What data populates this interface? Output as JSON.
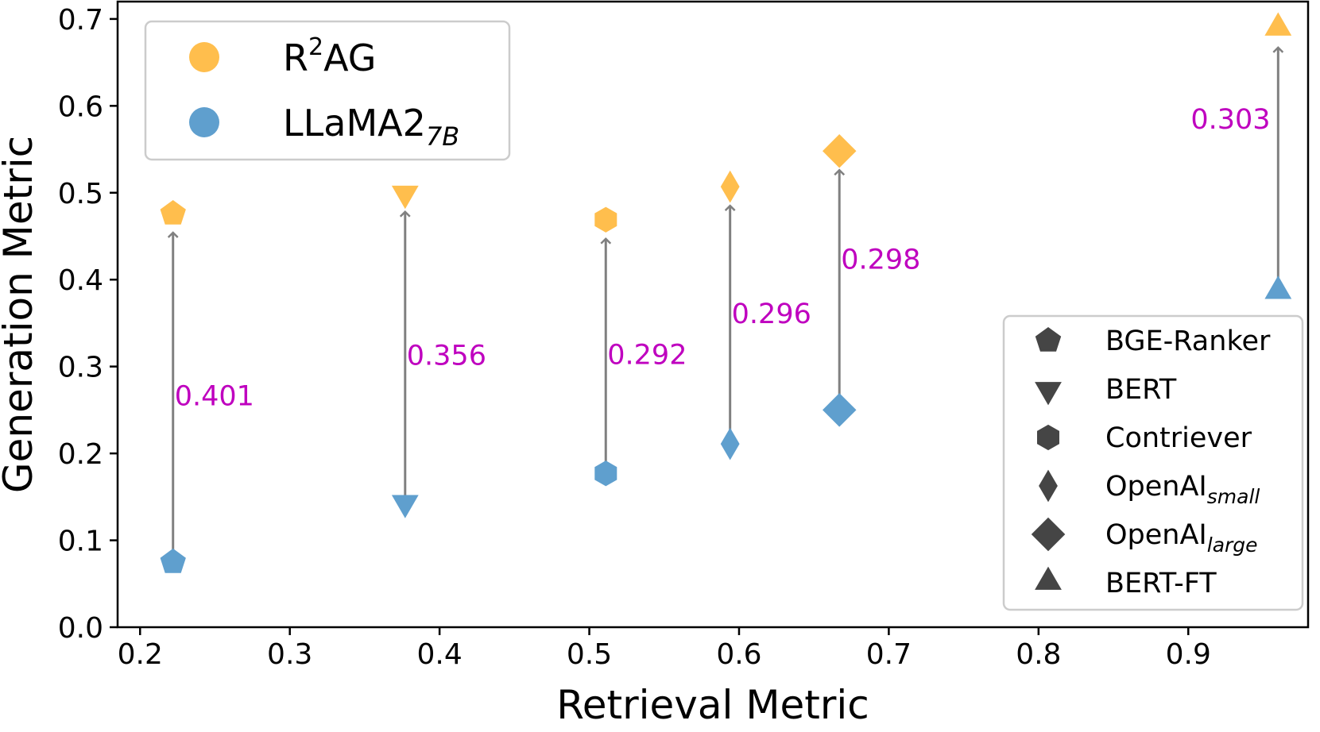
{
  "chart_data": {
    "type": "scatter",
    "title": "",
    "xlabel": "Retrieval Metric",
    "ylabel": "Generation Metric",
    "xlim": [
      0.185,
      0.98
    ],
    "ylim": [
      0.0,
      0.72
    ],
    "xticks": [
      "0.2",
      "0.3",
      "0.4",
      "0.5",
      "0.6",
      "0.7",
      "0.8",
      "0.9"
    ],
    "yticks": [
      "0.0",
      "0.1",
      "0.2",
      "0.3",
      "0.4",
      "0.5",
      "0.6",
      "0.7"
    ],
    "grid": false,
    "colors": {
      "r2ag": "#ffbe4d",
      "llama": "#5f9fce",
      "arrow": "#808080",
      "delta": "#bf00bf",
      "legend_marker": "#454545"
    },
    "series_legend": {
      "position": "upper-left",
      "entries": [
        {
          "key": "r2ag",
          "base": "R",
          "sup": "2",
          "rest": "AG"
        },
        {
          "key": "llama",
          "base": "LLaMA2",
          "sub": "7B"
        }
      ]
    },
    "marker_legend": {
      "position": "lower-right",
      "entries": [
        {
          "marker": "pentagon",
          "base": "BGE-Ranker",
          "sub": ""
        },
        {
          "marker": "triangle-down",
          "base": "BERT",
          "sub": ""
        },
        {
          "marker": "hexagon",
          "base": "Contriever",
          "sub": ""
        },
        {
          "marker": "thin-diamond",
          "base": "OpenAI",
          "sub": "small"
        },
        {
          "marker": "diamond",
          "base": "OpenAI",
          "sub": "large"
        },
        {
          "marker": "triangle-up",
          "base": "BERT-FT",
          "sub": ""
        }
      ]
    },
    "points": [
      {
        "name": "BGE-Ranker",
        "marker": "pentagon",
        "x": 0.222,
        "llama": 0.075,
        "r2ag": 0.476,
        "delta": "0.401"
      },
      {
        "name": "BERT",
        "marker": "triangle-down",
        "x": 0.377,
        "llama": 0.144,
        "r2ag": 0.5,
        "delta": "0.356"
      },
      {
        "name": "Contriever",
        "marker": "hexagon",
        "x": 0.511,
        "llama": 0.177,
        "r2ag": 0.469,
        "delta": "0.292"
      },
      {
        "name": "OpenAI-small",
        "marker": "thin-diamond",
        "x": 0.594,
        "llama": 0.211,
        "r2ag": 0.507,
        "delta": "0.296"
      },
      {
        "name": "OpenAI-large",
        "marker": "diamond",
        "x": 0.667,
        "llama": 0.25,
        "r2ag": 0.548,
        "delta": "0.298"
      },
      {
        "name": "BERT-FT",
        "marker": "triangle-up",
        "x": 0.96,
        "llama": 0.386,
        "r2ag": 0.689,
        "delta": "0.303"
      }
    ]
  }
}
